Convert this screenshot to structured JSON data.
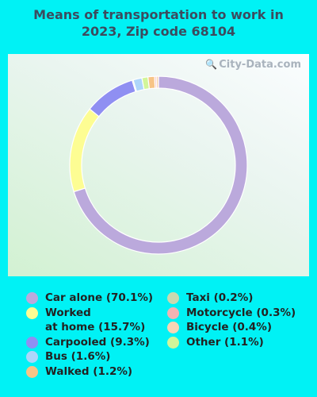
{
  "page": {
    "background": "#00f2f5"
  },
  "title_lines": [
    "Means of transportation to work in",
    "2023, Zip code 68104"
  ],
  "watermark": {
    "text": "City-Data.com",
    "icon": "magnifier-icon"
  },
  "chart_data": {
    "type": "donut",
    "title": "Means of transportation to work in 2023, Zip code 68104",
    "start_angle_deg": 0,
    "series": [
      {
        "name": "Car alone",
        "pct": 70.1,
        "color": "#bba9dc",
        "label_lines": [
          "Car alone (70.1%)"
        ]
      },
      {
        "name": "Worked at home",
        "pct": 15.7,
        "color": "#fdfd93",
        "label_lines": [
          "Worked",
          "at home (15.7%)"
        ]
      },
      {
        "name": "Carpooled",
        "pct": 9.3,
        "color": "#8f8ff2",
        "label_lines": [
          "Carpooled (9.3%)"
        ]
      },
      {
        "name": "Taxi",
        "pct": 0.2,
        "color": "#c9d9b0",
        "label_lines": [
          "Taxi (0.2%)"
        ]
      },
      {
        "name": "Bus",
        "pct": 1.6,
        "color": "#aed6fa",
        "label_lines": [
          "Bus (1.6%)"
        ]
      },
      {
        "name": "Other",
        "pct": 1.1,
        "color": "#d2f59a",
        "label_lines": [
          "Other (1.1%)"
        ]
      },
      {
        "name": "Walked",
        "pct": 1.2,
        "color": "#f7c486",
        "label_lines": [
          "Walked (1.2%)"
        ]
      },
      {
        "name": "Motorcycle",
        "pct": 0.3,
        "color": "#f2b3b3",
        "label_lines": [
          "Motorcycle (0.3%)"
        ]
      },
      {
        "name": "Bicycle",
        "pct": 0.4,
        "color": "#f8d5b5",
        "label_lines": [
          "Bicycle (0.4%)"
        ]
      }
    ],
    "legend": {
      "columns": [
        [
          "Car alone",
          "Worked at home",
          "Carpooled",
          "Bus",
          "Walked"
        ],
        [
          "Taxi",
          "Motorcycle",
          "Bicycle",
          "Other"
        ]
      ]
    }
  }
}
